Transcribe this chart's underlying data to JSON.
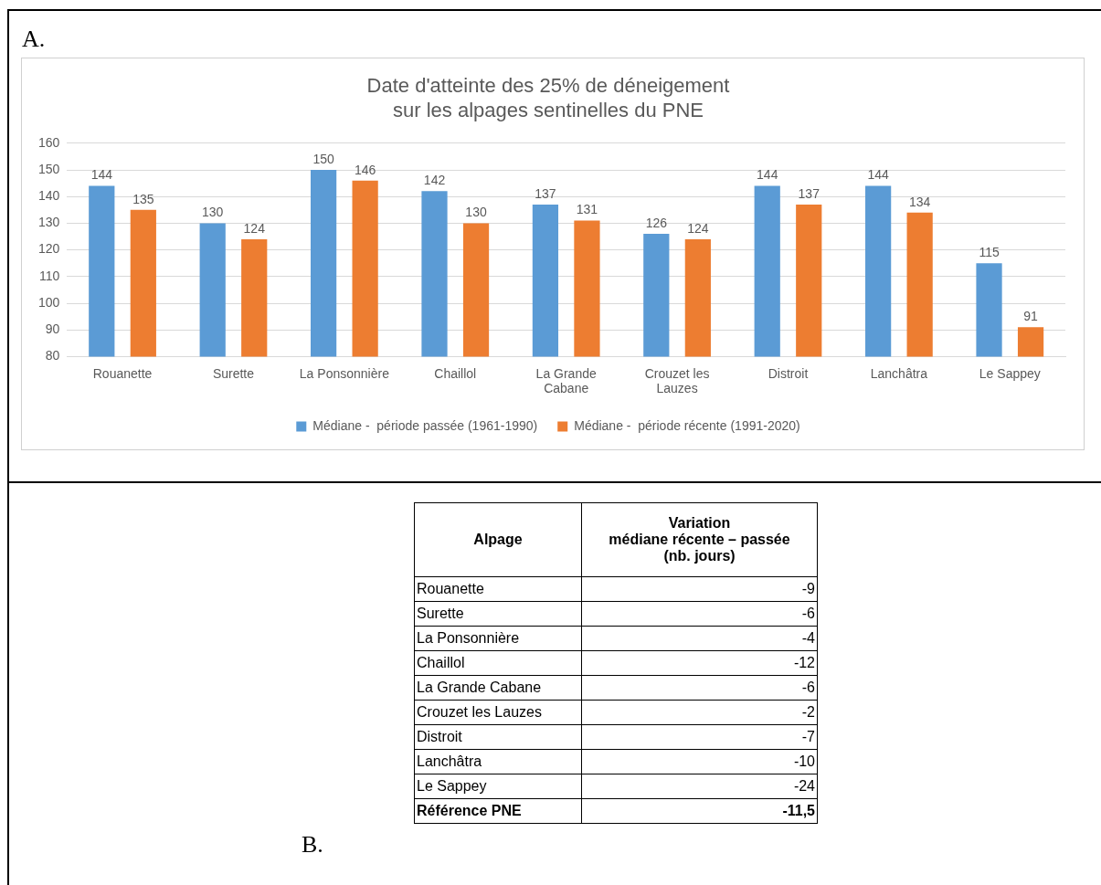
{
  "chart_data": [
    {
      "type": "bar",
      "title": "Date d'atteinte des 25% de déneigement\nsur les alpages sentinelles du PNE",
      "annotations": [
        "A."
      ],
      "categories": [
        "Rouanette",
        "Surette",
        "La Ponsonnière",
        "Chaillol",
        "La Grande\nCabane",
        "Crouzet les\nLauzes",
        "Distroit",
        "Lanchâtra",
        "Le Sappey"
      ],
      "series": [
        {
          "name": "Médiane -  période passée (1961-1990)",
          "color": "#5b9bd5",
          "values": [
            144,
            130,
            150,
            142,
            137,
            126,
            144,
            144,
            115
          ]
        },
        {
          "name": "Médiane -  période récente (1991-2020)",
          "color": "#ed7d31",
          "values": [
            135,
            124,
            146,
            130,
            131,
            124,
            137,
            134,
            91
          ]
        }
      ],
      "ylim": [
        80,
        160
      ],
      "yticks": [
        80,
        90,
        100,
        110,
        120,
        130,
        140,
        150,
        160
      ],
      "grid": "y",
      "legend": "bottom",
      "data_labels": true
    },
    {
      "type": "other",
      "annotations": [
        "B."
      ],
      "xlabel": "Alpage",
      "ylabel": "Variation\nmédiane récente – passée\n(nb. jours)",
      "categories": [
        "Rouanette",
        "Surette",
        "La Ponsonnière",
        "Chaillol",
        "La Grande Cabane",
        "Crouzet les Lauzes",
        "Distroit",
        "Lanchâtra",
        "Le Sappey",
        "Référence PNE"
      ],
      "value_labels": [
        "-9",
        "-6",
        "-4",
        "-12",
        "-6",
        "-2",
        "-7",
        "-10",
        "-24",
        "-11,5"
      ]
    }
  ]
}
